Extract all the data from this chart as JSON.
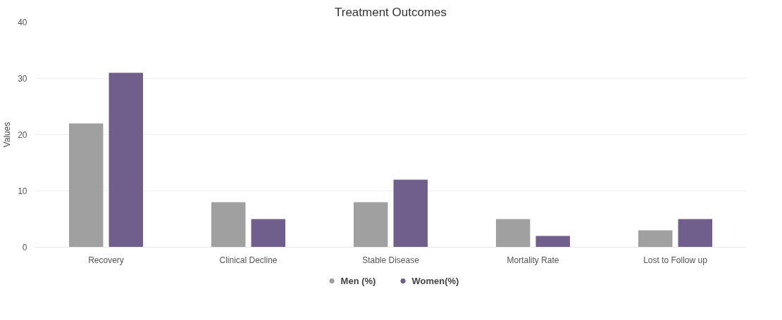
{
  "chart_data": {
    "type": "bar",
    "title": "Treatment Outcomes",
    "ylabel": "Values",
    "categories": [
      "Recovery",
      "Clinical Decline",
      "Stable Disease",
      "Mortality Rate",
      "Lost to Follow up"
    ],
    "series": [
      {
        "name": "Men (%)",
        "color": "#a0a0a0",
        "values": [
          22,
          8,
          8,
          5,
          3
        ]
      },
      {
        "name": "Women(%)",
        "color": "#705e8c",
        "values": [
          31,
          5,
          12,
          2,
          5
        ]
      }
    ],
    "ylim": [
      0,
      40
    ],
    "yticks": [
      0,
      10,
      20,
      30,
      40
    ],
    "grid": "y",
    "legend": "bottom"
  }
}
